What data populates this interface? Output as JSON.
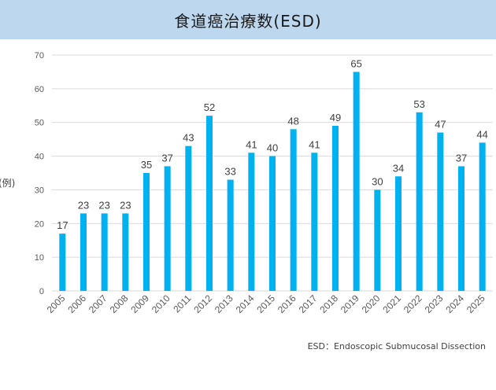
{
  "title": "食道癌治療数(ESD)",
  "unit_label": "(例)",
  "footnote": "ESD：Endoscopic Submucosal Dissection",
  "colors": {
    "bar": "#00b0f0",
    "header_bg": "#bdd7ee",
    "grid": "#d9d9d9"
  },
  "chart_data": {
    "type": "bar",
    "title": "食道癌治療数(ESD)",
    "ylabel": "(例)",
    "xlabel": "",
    "ylim": [
      0,
      70
    ],
    "yticks": [
      0,
      10,
      20,
      30,
      40,
      50,
      60,
      70
    ],
    "grid": true,
    "categories": [
      "2005",
      "2006",
      "2007",
      "2008",
      "2009",
      "2010",
      "2011",
      "2012",
      "2013",
      "2014",
      "2015",
      "2016",
      "2017",
      "2018",
      "2019",
      "2020",
      "2021",
      "2022",
      "2023",
      "2024",
      "2025"
    ],
    "values": [
      17,
      23,
      23,
      23,
      35,
      37,
      43,
      52,
      33,
      41,
      40,
      48,
      41,
      49,
      65,
      30,
      34,
      53,
      47,
      37,
      44
    ]
  }
}
